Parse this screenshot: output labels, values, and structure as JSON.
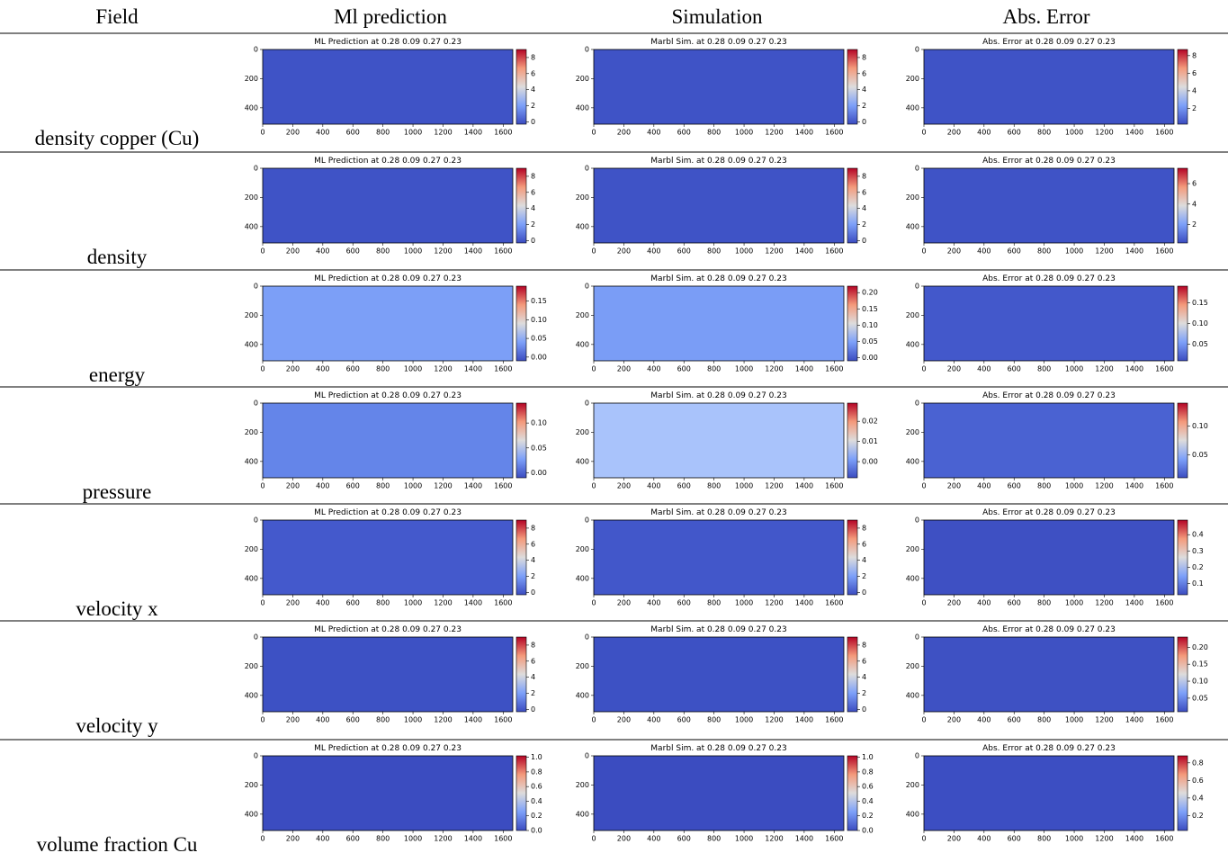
{
  "field_header": "Field",
  "columns": [
    {
      "header": "Ml prediction",
      "panel_title": "ML Prediction at 0.28 0.09 0.27 0.23"
    },
    {
      "header": "Simulation",
      "panel_title": "Marbl Sim. at 0.28 0.09 0.27 0.23"
    },
    {
      "header": "Abs. Error",
      "panel_title": "Abs. Error at 0.28 0.09 0.27 0.23"
    }
  ],
  "axes": {
    "xlim": [
      0,
      1664
    ],
    "xticks": [
      0,
      200,
      400,
      600,
      800,
      1000,
      1200,
      1400,
      1600
    ],
    "ylim": [
      0,
      512
    ],
    "yticks": [
      0,
      200,
      400
    ]
  },
  "rows": [
    {
      "label": "density copper (Cu)",
      "panels": [
        {
          "color": "#3f53c6",
          "clim": [
            -0.3,
            9
          ],
          "cticks": [
            0,
            2,
            4,
            6,
            8
          ]
        },
        {
          "color": "#3f53c6",
          "clim": [
            -0.3,
            9
          ],
          "cticks": [
            0,
            2,
            4,
            6,
            8
          ]
        },
        {
          "color": "#3f53c6",
          "clim": [
            0.2,
            8.7
          ],
          "cticks": [
            2,
            4,
            6,
            8
          ]
        }
      ]
    },
    {
      "label": "density",
      "panels": [
        {
          "color": "#3f53c6",
          "clim": [
            -0.3,
            9
          ],
          "cticks": [
            0,
            2,
            4,
            6,
            8
          ]
        },
        {
          "color": "#3f53c6",
          "clim": [
            -0.3,
            9
          ],
          "cticks": [
            0,
            2,
            4,
            6,
            8
          ]
        },
        {
          "color": "#3f53c6",
          "clim": [
            0.2,
            7.5
          ],
          "cticks": [
            2,
            4,
            6
          ]
        }
      ]
    },
    {
      "label": "energy",
      "panels": [
        {
          "color": "#7c9ff7",
          "clim": [
            -0.01,
            0.19
          ],
          "cticks": [
            {
              "value": 0,
              "label": "0.00"
            },
            0.05,
            {
              "value": 0.1,
              "label": "0.10"
            },
            0.15
          ]
        },
        {
          "color": "#7a9df6",
          "clim": [
            -0.01,
            0.22
          ],
          "cticks": [
            {
              "value": 0,
              "label": "0.00"
            },
            0.05,
            {
              "value": 0.1,
              "label": "0.10"
            },
            0.15,
            {
              "value": 0.2,
              "label": "0.20"
            }
          ]
        },
        {
          "color": "#4358cb",
          "clim": [
            0.01,
            0.19
          ],
          "cticks": [
            0.05,
            {
              "value": 0.1,
              "label": "0.10"
            },
            0.15
          ]
        }
      ]
    },
    {
      "label": "pressure",
      "panels": [
        {
          "color": "#6485e9",
          "clim": [
            -0.01,
            0.14
          ],
          "cticks": [
            {
              "value": 0,
              "label": "0.00"
            },
            0.05,
            {
              "value": 0.1,
              "label": "0.10"
            }
          ]
        },
        {
          "color": "#a9c3fb",
          "clim": [
            -0.008,
            0.029
          ],
          "cticks": [
            {
              "value": 0,
              "label": "0.00"
            },
            0.01,
            0.02
          ]
        },
        {
          "color": "#4a62d2",
          "clim": [
            0.01,
            0.14
          ],
          "cticks": [
            0.05,
            {
              "value": 0.1,
              "label": "0.10"
            }
          ]
        }
      ]
    },
    {
      "label": "velocity x",
      "panels": [
        {
          "color": "#4459cc",
          "clim": [
            -0.3,
            9
          ],
          "cticks": [
            0,
            2,
            4,
            6,
            8
          ]
        },
        {
          "color": "#4257ca",
          "clim": [
            -0.3,
            9
          ],
          "cticks": [
            0,
            2,
            4,
            6,
            8
          ]
        },
        {
          "color": "#3e50c3",
          "clim": [
            0.03,
            0.49
          ],
          "cticks": [
            0.1,
            0.2,
            0.3,
            0.4
          ]
        }
      ]
    },
    {
      "label": "velocity y",
      "panels": [
        {
          "color": "#3d51c4",
          "clim": [
            -0.3,
            9
          ],
          "cticks": [
            0,
            2,
            4,
            6,
            8
          ]
        },
        {
          "color": "#3d51c4",
          "clim": [
            -0.3,
            9
          ],
          "cticks": [
            0,
            2,
            4,
            6,
            8
          ]
        },
        {
          "color": "#3e51c3",
          "clim": [
            0.01,
            0.23
          ],
          "cticks": [
            0.05,
            {
              "value": 0.1,
              "label": "0.10"
            },
            0.15,
            {
              "value": 0.2,
              "label": "0.20"
            }
          ]
        }
      ]
    },
    {
      "label": "volume fraction Cu",
      "panels": [
        {
          "color": "#3b4cc0",
          "clim": [
            0,
            1.02
          ],
          "cticks": [
            {
              "value": 0,
              "label": "0.0"
            },
            0.2,
            0.4,
            0.6,
            0.8,
            {
              "value": 1,
              "label": "1.0"
            }
          ]
        },
        {
          "color": "#3b4cc0",
          "clim": [
            0,
            1.02
          ],
          "cticks": [
            {
              "value": 0,
              "label": "0.0"
            },
            0.2,
            0.4,
            0.6,
            0.8,
            {
              "value": 1,
              "label": "1.0"
            }
          ]
        },
        {
          "color": "#3c4ec2",
          "clim": [
            0.03,
            0.88
          ],
          "cticks": [
            0.2,
            0.4,
            0.6,
            0.8
          ]
        }
      ]
    }
  ]
}
